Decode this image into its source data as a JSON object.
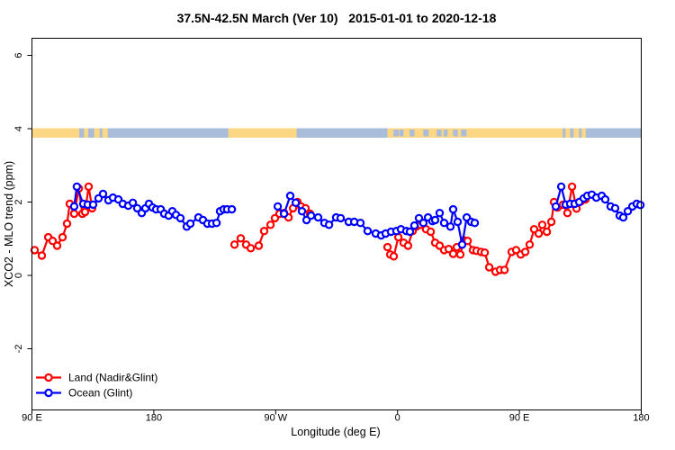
{
  "figure": {
    "title": "37.5N-42.5N March (Ver 10)   2015-01-01 to 2020-12-18",
    "background": "#ffffff"
  },
  "chart_data": {
    "type": "line",
    "title": "37.5N-42.5N March (Ver 10)   2015-01-01 to 2020-12-18",
    "xlabel": "Longitude (deg E)",
    "ylabel": "XCO2 - MLO trend (ppm)",
    "xlim": [
      90,
      540
    ],
    "ylim": [
      -3.7,
      6.5
    ],
    "grid": false,
    "x_ticks": [
      {
        "value": 90,
        "label": "90 E"
      },
      {
        "value": 180,
        "label": "180"
      },
      {
        "value": 270,
        "label": "90 W"
      },
      {
        "value": 360,
        "label": "0"
      },
      {
        "value": 450,
        "label": "90 E"
      },
      {
        "value": 540,
        "label": "180"
      }
    ],
    "y_ticks": [
      {
        "value": -2,
        "label": "-2"
      },
      {
        "value": 0,
        "label": "0"
      },
      {
        "value": 2,
        "label": "2"
      },
      {
        "value": 4,
        "label": "4"
      },
      {
        "value": 6,
        "label": "6"
      }
    ],
    "map_band": {
      "description": "land/ocean strip of latitude band plotted at y=4",
      "y_value": 4,
      "ocean_color": "#a9bcd9",
      "land_color": "#fbd683",
      "land_segments": [
        [
          90,
          125
        ],
        [
          128.5,
          131.5
        ],
        [
          136,
          140
        ],
        [
          142,
          146
        ],
        [
          235,
          285.5
        ],
        [
          352.5,
          482
        ],
        [
          484,
          487.5
        ],
        [
          490,
          494
        ],
        [
          496,
          499
        ]
      ],
      "ocean_patches": [
        [
          357,
          361
        ],
        [
          361.5,
          364.5
        ],
        [
          369,
          372.5
        ],
        [
          379,
          383
        ],
        [
          389,
          392.5
        ],
        [
          394,
          397
        ],
        [
          401,
          404.5
        ],
        [
          407,
          411
        ]
      ]
    },
    "legend": {
      "position": "bottom-left",
      "items": [
        {
          "label": "Land (Nadir&Glint)",
          "color": "#ff0000"
        },
        {
          "label": "Ocean (Glint)",
          "color": "#0000ff"
        }
      ]
    },
    "series": [
      {
        "name": "Land (Nadir&Glint)",
        "color": "#ff0000",
        "marker": "open-circle",
        "segments": [
          [
            [
              92.0,
              0.69
            ],
            [
              97.3,
              0.54
            ],
            [
              102.0,
              1.04
            ],
            [
              105.3,
              0.94
            ],
            [
              108.6,
              0.81
            ],
            [
              112.6,
              1.04
            ],
            [
              115.9,
              1.41
            ],
            [
              117.9,
              1.95
            ],
            [
              121.2,
              1.68
            ],
            [
              124.6,
              2.37
            ],
            [
              127.2,
              1.68
            ],
            [
              129.2,
              1.73
            ],
            [
              131.9,
              2.42
            ],
            [
              134.5,
              1.83
            ]
          ],
          [
            [
              239.6,
              0.84
            ],
            [
              244.2,
              1.01
            ],
            [
              248.2,
              0.84
            ],
            [
              251.6,
              0.74
            ],
            [
              257.5,
              0.81
            ],
            [
              261.5,
              1.21
            ],
            [
              266.2,
              1.38
            ],
            [
              269.5,
              1.56
            ],
            [
              272.8,
              1.68
            ],
            [
              276.2,
              1.7
            ],
            [
              279.5,
              1.58
            ],
            [
              282.8,
              1.83
            ],
            [
              286.1,
              2.0
            ],
            [
              288.8,
              1.88
            ],
            [
              292.1,
              1.83
            ],
            [
              295.4,
              1.68
            ]
          ],
          [
            [
              352.6,
              0.77
            ],
            [
              354.6,
              0.57
            ],
            [
              357.2,
              0.52
            ],
            [
              360.6,
              1.04
            ],
            [
              364.5,
              0.89
            ],
            [
              367.8,
              0.81
            ],
            [
              371.2,
              1.21
            ],
            [
              373.8,
              1.33
            ],
            [
              377.2,
              1.38
            ],
            [
              381.1,
              1.26
            ],
            [
              384.5,
              1.19
            ],
            [
              387.8,
              0.89
            ],
            [
              391.1,
              0.81
            ],
            [
              394.4,
              0.69
            ],
            [
              397.8,
              0.72
            ],
            [
              401.1,
              0.59
            ],
            [
              403.8,
              0.77
            ],
            [
              406.4,
              0.57
            ],
            [
              409.1,
              0.96
            ],
            [
              411.8,
              0.94
            ],
            [
              415.7,
              0.69
            ],
            [
              418.4,
              0.67
            ],
            [
              421.7,
              0.64
            ],
            [
              424.4,
              0.62
            ],
            [
              427.7,
              0.22
            ],
            [
              432.4,
              0.1
            ],
            [
              435.7,
              0.15
            ],
            [
              439.0,
              0.15
            ],
            [
              444.3,
              0.64
            ],
            [
              447.6,
              0.69
            ],
            [
              451.0,
              0.57
            ],
            [
              454.3,
              0.64
            ],
            [
              457.6,
              0.84
            ],
            [
              460.9,
              1.26
            ],
            [
              464.3,
              1.14
            ],
            [
              466.9,
              1.38
            ],
            [
              470.3,
              1.19
            ],
            [
              473.6,
              1.46
            ],
            [
              475.6,
              2.0
            ],
            [
              478.2,
              1.85
            ],
            [
              482.2,
              1.93
            ],
            [
              485.5,
              1.7
            ],
            [
              488.9,
              2.42
            ],
            [
              492.2,
              1.82
            ],
            [
              495.5,
              2.02
            ],
            [
              498.8,
              2.07
            ]
          ]
        ]
      },
      {
        "name": "Ocean (Glint)",
        "color": "#0000ff",
        "marker": "open-circle",
        "segments": [
          [
            [
              121.2,
              1.88
            ],
            [
              123.2,
              2.42
            ],
            [
              127.9,
              1.95
            ],
            [
              131.2,
              1.93
            ],
            [
              135.2,
              1.93
            ],
            [
              139.2,
              2.1
            ],
            [
              142.5,
              2.22
            ],
            [
              146.5,
              2.05
            ],
            [
              149.8,
              2.12
            ],
            [
              153.8,
              2.07
            ],
            [
              157.1,
              1.95
            ],
            [
              161.1,
              1.9
            ],
            [
              164.5,
              1.98
            ],
            [
              167.8,
              1.83
            ],
            [
              171.1,
              1.7
            ],
            [
              173.8,
              1.83
            ],
            [
              176.4,
              1.95
            ],
            [
              179.1,
              1.85
            ],
            [
              181.7,
              1.8
            ],
            [
              185.1,
              1.8
            ],
            [
              187.7,
              1.68
            ],
            [
              191.0,
              1.63
            ],
            [
              193.7,
              1.75
            ],
            [
              196.4,
              1.65
            ],
            [
              199.7,
              1.56
            ],
            [
              204.3,
              1.33
            ],
            [
              207.0,
              1.41
            ],
            [
              213.0,
              1.58
            ],
            [
              216.3,
              1.51
            ],
            [
              219.6,
              1.41
            ],
            [
              223.0,
              1.41
            ],
            [
              226.3,
              1.43
            ],
            [
              228.9,
              1.75
            ],
            [
              231.6,
              1.8
            ],
            [
              234.2,
              1.8
            ],
            [
              237.6,
              1.8
            ]
          ],
          [
            [
              271.5,
              1.88
            ],
            [
              276.2,
              1.68
            ],
            [
              280.8,
              2.17
            ],
            [
              284.8,
              1.98
            ],
            [
              289.4,
              1.75
            ],
            [
              292.8,
              1.51
            ],
            [
              296.1,
              1.63
            ],
            [
              301.4,
              1.58
            ],
            [
              306.0,
              1.43
            ],
            [
              309.4,
              1.38
            ],
            [
              314.7,
              1.58
            ],
            [
              318.0,
              1.56
            ],
            [
              324.0,
              1.46
            ],
            [
              328.0,
              1.46
            ],
            [
              332.6,
              1.43
            ],
            [
              337.9,
              1.21
            ],
            [
              343.9,
              1.14
            ],
            [
              347.9,
              1.09
            ],
            [
              351.2,
              1.14
            ],
            [
              355.2,
              1.19
            ],
            [
              359.2,
              1.21
            ],
            [
              362.5,
              1.26
            ],
            [
              366.5,
              1.21
            ],
            [
              369.2,
              1.19
            ],
            [
              372.5,
              1.36
            ],
            [
              375.8,
              1.56
            ],
            [
              379.1,
              1.43
            ],
            [
              382.5,
              1.58
            ],
            [
              385.8,
              1.48
            ],
            [
              387.8,
              1.51
            ],
            [
              391.1,
              1.7
            ],
            [
              394.4,
              1.43
            ],
            [
              399.1,
              1.33
            ],
            [
              401.1,
              1.8
            ],
            [
              404.4,
              1.46
            ],
            [
              407.7,
              0.84
            ],
            [
              411.1,
              1.58
            ],
            [
              414.4,
              1.46
            ],
            [
              417.0,
              1.43
            ]
          ],
          [
            [
              476.9,
              1.88
            ],
            [
              480.9,
              2.42
            ],
            [
              484.2,
              1.93
            ],
            [
              487.5,
              1.95
            ],
            [
              490.8,
              1.95
            ],
            [
              494.2,
              2.0
            ],
            [
              497.5,
              2.1
            ],
            [
              500.1,
              2.17
            ],
            [
              503.5,
              2.2
            ],
            [
              506.8,
              2.12
            ],
            [
              510.8,
              2.17
            ],
            [
              513.4,
              2.07
            ],
            [
              517.4,
              1.88
            ],
            [
              520.7,
              1.83
            ],
            [
              524.1,
              1.63
            ],
            [
              526.7,
              1.58
            ],
            [
              530.1,
              1.75
            ],
            [
              533.4,
              1.88
            ],
            [
              536.7,
              1.95
            ],
            [
              539.4,
              1.92
            ]
          ]
        ]
      }
    ]
  }
}
